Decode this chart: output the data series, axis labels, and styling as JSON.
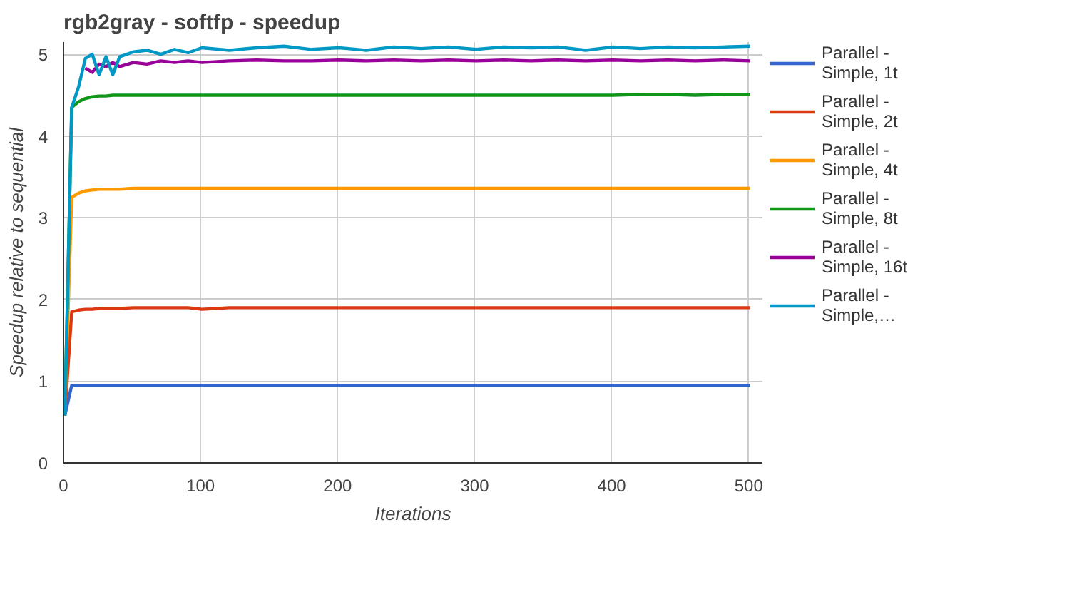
{
  "chart_data": {
    "type": "line",
    "title": "rgb2gray - softfp - speedup",
    "xlabel": "Iterations",
    "ylabel": "Speedup relative to sequential",
    "x": [
      1,
      6,
      11,
      16,
      21,
      26,
      31,
      36,
      41,
      51,
      61,
      71,
      81,
      91,
      101,
      121,
      141,
      161,
      181,
      201,
      221,
      241,
      261,
      281,
      301,
      321,
      341,
      361,
      381,
      401,
      421,
      441,
      461,
      481,
      501
    ],
    "series": [
      {
        "name": "Parallel - Simple, 1t",
        "color": "#3366cc",
        "values": [
          0.58,
          0.95,
          0.95,
          0.95,
          0.95,
          0.95,
          0.95,
          0.95,
          0.95,
          0.95,
          0.95,
          0.95,
          0.95,
          0.95,
          0.95,
          0.95,
          0.95,
          0.95,
          0.95,
          0.95,
          0.95,
          0.95,
          0.95,
          0.95,
          0.95,
          0.95,
          0.95,
          0.95,
          0.95,
          0.95,
          0.95,
          0.95,
          0.95,
          0.95,
          0.95
        ]
      },
      {
        "name": "Parallel - Simple, 2t",
        "color": "#dc3912",
        "values": [
          0.58,
          1.85,
          1.87,
          1.88,
          1.88,
          1.89,
          1.89,
          1.89,
          1.89,
          1.9,
          1.9,
          1.9,
          1.9,
          1.9,
          1.88,
          1.9,
          1.9,
          1.9,
          1.9,
          1.9,
          1.9,
          1.9,
          1.9,
          1.9,
          1.9,
          1.9,
          1.9,
          1.9,
          1.9,
          1.9,
          1.9,
          1.9,
          1.9,
          1.9,
          1.9
        ]
      },
      {
        "name": "Parallel - Simple, 4t",
        "color": "#ff9900",
        "values": [
          0.58,
          3.25,
          3.3,
          3.33,
          3.34,
          3.35,
          3.35,
          3.35,
          3.35,
          3.36,
          3.36,
          3.36,
          3.36,
          3.36,
          3.36,
          3.36,
          3.36,
          3.36,
          3.36,
          3.36,
          3.36,
          3.36,
          3.36,
          3.36,
          3.36,
          3.36,
          3.36,
          3.36,
          3.36,
          3.36,
          3.36,
          3.36,
          3.36,
          3.36,
          3.36
        ]
      },
      {
        "name": "Parallel - Simple, 8t",
        "color": "#109618",
        "values": [
          0.58,
          4.35,
          4.42,
          4.46,
          4.48,
          4.49,
          4.49,
          4.5,
          4.5,
          4.5,
          4.5,
          4.5,
          4.5,
          4.5,
          4.5,
          4.5,
          4.5,
          4.5,
          4.5,
          4.5,
          4.5,
          4.5,
          4.5,
          4.5,
          4.5,
          4.5,
          4.5,
          4.5,
          4.5,
          4.5,
          4.51,
          4.51,
          4.5,
          4.51,
          4.51
        ]
      },
      {
        "name": "Parallel - Simple, 16t",
        "color": "#990099",
        "values": [
          null,
          null,
          null,
          4.83,
          4.78,
          4.88,
          4.85,
          4.9,
          4.85,
          4.9,
          4.88,
          4.92,
          4.9,
          4.92,
          4.9,
          4.92,
          4.93,
          4.92,
          4.92,
          4.93,
          4.92,
          4.93,
          4.92,
          4.93,
          4.92,
          4.93,
          4.92,
          4.93,
          4.92,
          4.93,
          4.92,
          4.93,
          4.92,
          4.93,
          4.92
        ]
      },
      {
        "name": "Parallel - Simple,…",
        "color": "#0099c6",
        "values": [
          0.58,
          4.35,
          4.6,
          4.95,
          5.0,
          4.75,
          4.97,
          4.75,
          4.97,
          5.03,
          5.05,
          5.0,
          5.06,
          5.02,
          5.08,
          5.05,
          5.08,
          5.1,
          5.06,
          5.08,
          5.05,
          5.09,
          5.07,
          5.09,
          5.06,
          5.09,
          5.08,
          5.09,
          5.05,
          5.09,
          5.07,
          5.09,
          5.08,
          5.09,
          5.1
        ]
      }
    ],
    "xlim": [
      0,
      510
    ],
    "ylim": [
      0,
      5.15
    ],
    "xticks": [
      0,
      100,
      200,
      300,
      400,
      500
    ],
    "yticks": [
      0,
      1,
      2,
      3,
      4,
      5
    ],
    "grid": true,
    "legend": "right",
    "marker": "none",
    "line_style": "solid"
  }
}
